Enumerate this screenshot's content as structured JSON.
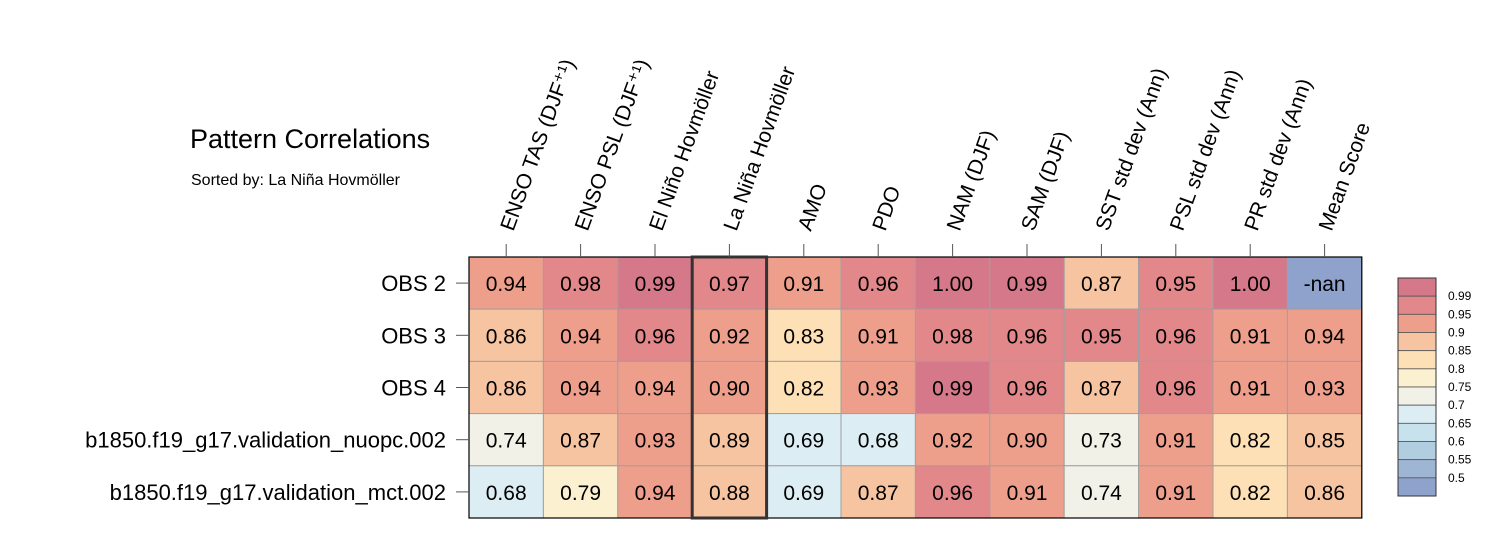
{
  "chart_data": {
    "type": "heatmap",
    "title": "Pattern Correlations",
    "subtitle": "Sorted by: La Niña Hovmöller",
    "columns": [
      "ENSO TAS (DJF⁺¹)",
      "ENSO PSL (DJF⁺¹)",
      "El Niño Hovmöller",
      "La Niña Hovmöller",
      "AMO",
      "PDO",
      "NAM (DJF)",
      "SAM (DJF)",
      "SST std dev (Ann)",
      "PSL std dev (Ann)",
      "PR std dev (Ann)",
      "Mean Score"
    ],
    "rows": [
      "OBS 2",
      "OBS 3",
      "OBS 4",
      "b1850.f19_g17.validation_nuopc.002",
      "b1850.f19_g17.validation_mct.002"
    ],
    "values": [
      [
        "0.94",
        "0.98",
        "0.99",
        "0.97",
        "0.91",
        "0.96",
        "1.00",
        "0.99",
        "0.87",
        "0.95",
        "1.00",
        "-nan"
      ],
      [
        "0.86",
        "0.94",
        "0.96",
        "0.92",
        "0.83",
        "0.91",
        "0.98",
        "0.96",
        "0.95",
        "0.96",
        "0.91",
        "0.94"
      ],
      [
        "0.86",
        "0.94",
        "0.94",
        "0.90",
        "0.82",
        "0.93",
        "0.99",
        "0.96",
        "0.87",
        "0.96",
        "0.91",
        "0.93"
      ],
      [
        "0.74",
        "0.87",
        "0.93",
        "0.89",
        "0.69",
        "0.68",
        "0.92",
        "0.90",
        "0.73",
        "0.91",
        "0.82",
        "0.85"
      ],
      [
        "0.68",
        "0.79",
        "0.94",
        "0.88",
        "0.69",
        "0.87",
        "0.96",
        "0.91",
        "0.74",
        "0.91",
        "0.82",
        "0.86"
      ]
    ],
    "highlighted_column": "La Niña Hovmöller",
    "legend": {
      "labels": [
        "0.99",
        "0.95",
        "0.9",
        "0.85",
        "0.8",
        "0.75",
        "0.7",
        "0.65",
        "0.6",
        "0.55",
        "0.5"
      ],
      "colors": [
        "#d4788a",
        "#e2878a",
        "#ee9f8c",
        "#f7c4a1",
        "#fde0b5",
        "#fbf0cf",
        "#f2f1e7",
        "#dcedf3",
        "#c7e2ec",
        "#b1cde0",
        "#9fb5d4",
        "#8fa2cc"
      ],
      "placement": "right"
    },
    "nan_color": "#8fa2cc"
  }
}
